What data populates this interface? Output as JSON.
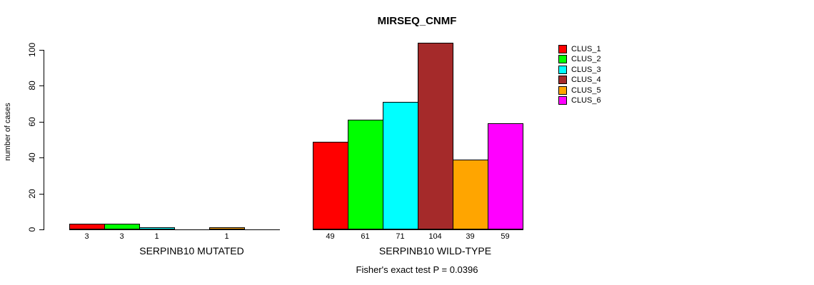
{
  "chart_data": {
    "type": "bar",
    "title": "MIRSEQ_CNMF",
    "ylabel": "number of cases",
    "ylim": [
      0,
      100
    ],
    "yticks": [
      0,
      20,
      40,
      60,
      80,
      100
    ],
    "grid": false,
    "legend_position": "right",
    "legend": [
      {
        "label": "CLUS_1",
        "color": "#FF0000"
      },
      {
        "label": "CLUS_2",
        "color": "#00FF00"
      },
      {
        "label": "CLUS_3",
        "color": "#00FFFF"
      },
      {
        "label": "CLUS_4",
        "color": "#A52A2A"
      },
      {
        "label": "CLUS_5",
        "color": "#FFA500"
      },
      {
        "label": "CLUS_6",
        "color": "#FF00FF"
      }
    ],
    "groups": [
      {
        "label": "SERPINB10 MUTATED",
        "values": [
          3,
          3,
          1,
          0,
          1,
          0
        ]
      },
      {
        "label": "SERPINB10 WILD-TYPE",
        "values": [
          49,
          61,
          71,
          104,
          39,
          59
        ]
      }
    ],
    "bar_value_labels_shown": true,
    "annotation": "Fisher's exact test P = 0.0396"
  }
}
